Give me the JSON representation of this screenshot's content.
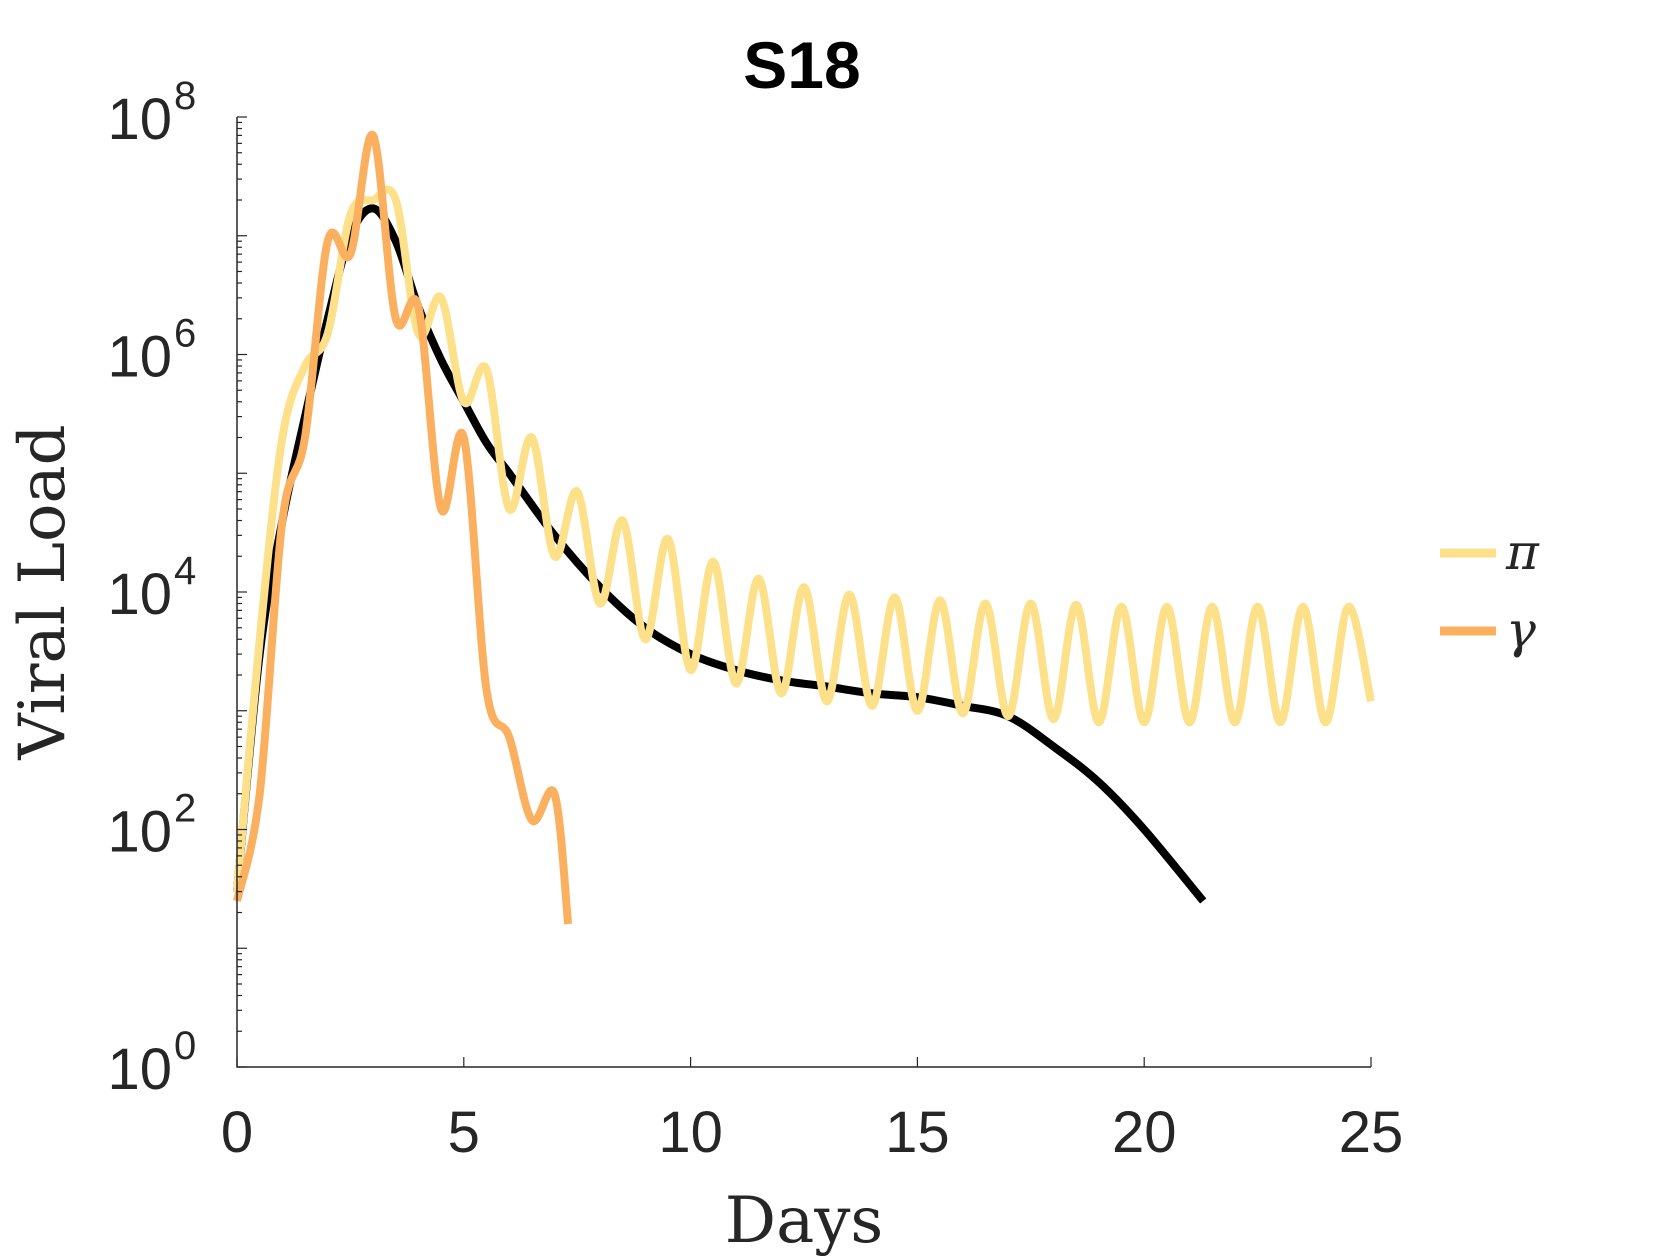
{
  "chart_data": {
    "type": "line",
    "title": "S18",
    "xlabel": "Days",
    "ylabel": "Viral Load",
    "xlim": [
      0,
      25
    ],
    "ylim": [
      1,
      100000000
    ],
    "yscale": "log",
    "x_ticks": [
      "0",
      "5",
      "10",
      "15",
      "20",
      "25"
    ],
    "y_ticks": [
      {
        "base": "10",
        "exp": "0"
      },
      {
        "base": "10",
        "exp": "2"
      },
      {
        "base": "10",
        "exp": "4"
      },
      {
        "base": "10",
        "exp": "6"
      },
      {
        "base": "10",
        "exp": "8"
      }
    ],
    "grid": false,
    "legend_position": "right",
    "series": [
      {
        "name": "",
        "color": "#000000",
        "x": [
          0,
          0.5,
          1,
          1.5,
          2,
          2.5,
          3,
          3.5,
          4,
          4.5,
          5,
          5.5,
          6,
          7,
          8,
          9,
          10,
          11,
          12,
          13,
          14,
          15,
          16,
          17,
          18,
          19,
          20,
          21.3
        ],
        "y": [
          30,
          3000,
          40000,
          300000,
          2000000,
          10000000,
          17000000,
          9000000,
          2500000,
          900000,
          400000,
          180000,
          100000,
          30000,
          11000,
          5000,
          3000,
          2200,
          1800,
          1600,
          1400,
          1300,
          1100,
          900,
          500,
          250,
          100,
          25
        ]
      },
      {
        "name": "π",
        "color": "#FDE18A",
        "x": [
          0,
          0.5,
          1,
          1.5,
          2,
          2.5,
          3,
          3.5,
          4,
          4.5,
          5,
          5.5,
          6,
          6.5,
          7,
          7.5,
          8,
          8.5,
          9,
          9.5,
          10,
          10.5,
          11,
          11.5,
          12,
          12.5,
          13,
          13.5,
          14,
          14.5,
          15,
          15.5,
          16,
          16.5,
          17,
          17.5,
          18,
          18.5,
          19,
          19.5,
          20,
          20.5,
          21,
          21.5,
          22,
          22.5,
          23,
          23.5,
          24,
          24.5,
          25
        ],
        "y": [
          30,
          4000,
          200000,
          800000,
          1500000,
          15000000,
          20000000,
          20000000,
          1500000,
          3000000,
          400000,
          750000,
          50000,
          200000,
          20000,
          70000,
          8000,
          40000,
          4000,
          28000,
          2200,
          18000,
          1700,
          13000,
          1400,
          11000,
          1200,
          9500,
          1100,
          9000,
          1000,
          8500,
          950,
          8000,
          900,
          8000,
          850,
          7800,
          800,
          7500,
          800,
          7500,
          800,
          7500,
          800,
          7500,
          800,
          7500,
          800,
          7500,
          1200
        ]
      },
      {
        "name": "γ",
        "color": "#FBB060",
        "x": [
          0,
          0.5,
          1,
          1.5,
          2,
          2.5,
          3,
          3.5,
          4,
          4.5,
          5,
          5.5,
          6,
          6.5,
          7,
          7.3
        ],
        "y": [
          25,
          200,
          40000,
          200000,
          9000000,
          7000000,
          70000000,
          2000000,
          2500000,
          50000,
          200000,
          1500,
          600,
          120,
          200,
          16
        ]
      }
    ]
  }
}
